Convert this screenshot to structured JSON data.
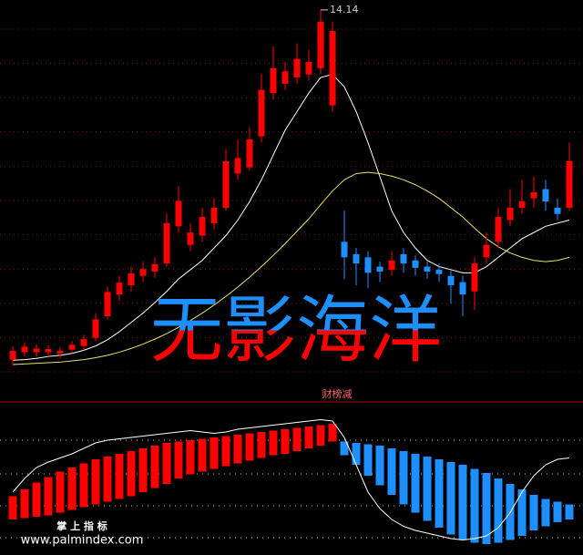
{
  "chart_data": [
    {
      "type": "candlestick",
      "open": [
        8.5,
        8.62,
        8.62,
        8.62,
        8.6,
        8.66,
        8.72,
        8.85,
        9.2,
        9.55,
        9.7,
        9.85,
        9.92,
        10.05,
        10.65,
        10.35,
        10.5,
        10.7,
        10.95,
        11.5,
        11.6,
        12.1,
        12.8,
        12.95,
        13.05,
        13.1,
        13.2,
        12.6,
        10.4,
        10.2,
        10.15,
        10.0,
        9.95,
        10.2,
        10.1,
        10.0,
        9.95,
        9.85,
        9.75,
        9.6,
        10.15,
        10.4,
        10.75,
        10.95,
        11.1,
        11.25,
        10.95,
        10.95
      ],
      "high": [
        8.72,
        8.78,
        8.74,
        8.73,
        8.7,
        8.8,
        8.9,
        9.25,
        9.68,
        9.85,
        10.0,
        10.08,
        10.15,
        10.85,
        11.3,
        10.7,
        10.95,
        11.1,
        11.9,
        12.05,
        12.25,
        13.1,
        13.55,
        13.3,
        13.6,
        13.5,
        14.14,
        13.95,
        10.9,
        10.3,
        10.25,
        10.08,
        10.25,
        10.3,
        10.18,
        10.08,
        10.05,
        9.95,
        9.85,
        10.15,
        10.55,
        10.95,
        11.25,
        11.4,
        11.45,
        11.4,
        11.1,
        12.0
      ],
      "low": [
        8.4,
        8.55,
        8.55,
        8.55,
        8.52,
        8.6,
        8.65,
        8.8,
        9.15,
        9.45,
        9.6,
        9.75,
        9.82,
        10.0,
        10.55,
        10.25,
        10.4,
        10.6,
        10.9,
        11.4,
        11.55,
        12.0,
        12.7,
        12.85,
        12.95,
        13.0,
        13.1,
        12.5,
        9.8,
        9.7,
        9.65,
        9.75,
        9.85,
        9.9,
        9.85,
        9.8,
        9.75,
        9.4,
        9.2,
        9.3,
        10.05,
        10.3,
        10.65,
        10.85,
        10.95,
        10.9,
        10.75,
        10.9
      ],
      "close": [
        8.64,
        8.71,
        8.68,
        8.67,
        8.64,
        8.74,
        8.83,
        9.15,
        9.59,
        9.74,
        9.89,
        9.96,
        10.04,
        10.7,
        11.06,
        10.55,
        10.8,
        10.95,
        11.7,
        11.75,
        12.05,
        12.85,
        13.2,
        13.15,
        13.35,
        13.3,
        13.95,
        13.8,
        10.15,
        10.05,
        9.9,
        9.92,
        10.1,
        10.05,
        9.98,
        9.92,
        9.88,
        9.7,
        9.55,
        10.05,
        10.35,
        10.8,
        10.95,
        11.05,
        11.2,
        11.05,
        10.85,
        11.7
      ],
      "up_color": "#ff0000",
      "down_color": "#1e8fff",
      "ylim": [
        8.2,
        14.3
      ],
      "high_label": 14.14,
      "lines": [
        {
          "color": "#ffffff",
          "values": [
            8.49,
            8.5,
            8.52,
            8.55,
            8.57,
            8.6,
            8.65,
            8.72,
            8.82,
            8.95,
            9.1,
            9.25,
            9.42,
            9.6,
            9.8,
            9.95,
            10.1,
            10.3,
            10.5,
            10.75,
            11.05,
            11.4,
            11.8,
            12.2,
            12.5,
            12.8,
            13.05,
            13.1,
            12.9,
            12.5,
            12.0,
            11.45,
            10.9,
            10.55,
            10.3,
            10.1,
            10.0,
            9.95,
            9.9,
            9.9,
            10.0,
            10.15,
            10.3,
            10.45,
            10.55,
            10.65,
            10.7,
            10.75
          ]
        },
        {
          "color": "#e8e06a",
          "values": [
            8.42,
            8.43,
            8.44,
            8.45,
            8.46,
            8.48,
            8.5,
            8.53,
            8.57,
            8.62,
            8.68,
            8.75,
            8.83,
            8.92,
            9.02,
            9.13,
            9.25,
            9.38,
            9.52,
            9.67,
            9.83,
            10.0,
            10.18,
            10.37,
            10.57,
            10.77,
            11.0,
            11.22,
            11.4,
            11.5,
            11.52,
            11.5,
            11.46,
            11.4,
            11.32,
            11.22,
            11.1,
            10.95,
            10.8,
            10.62,
            10.45,
            10.32,
            10.22,
            10.15,
            10.1,
            10.08,
            10.1,
            10.15
          ]
        }
      ]
    },
    {
      "type": "range-bar",
      "title": "财榜减",
      "high": [
        37,
        42,
        47,
        51,
        55,
        58,
        61,
        64,
        66,
        68,
        70,
        72,
        74,
        76,
        77,
        78,
        79,
        80,
        81,
        82,
        83,
        84,
        85,
        86,
        87,
        88,
        89,
        90,
        77,
        76,
        75,
        74,
        72,
        70,
        68,
        66,
        64,
        62,
        60,
        57,
        54,
        50,
        46,
        42,
        38,
        35,
        33,
        31
      ],
      "low": [
        20,
        21,
        22,
        23,
        25,
        27,
        29,
        31,
        33,
        35,
        37,
        40,
        43,
        46,
        50,
        53,
        55,
        57,
        59,
        61,
        63,
        65,
        67,
        68,
        70,
        72,
        74,
        77,
        67,
        60,
        52,
        45,
        38,
        31,
        25,
        19,
        14,
        9,
        5,
        3,
        2,
        3,
        5,
        8,
        12,
        15,
        18,
        20
      ],
      "up_color": "#ff0000",
      "down_color": "#1e8fff",
      "ylim": [
        0,
        100
      ],
      "line": {
        "color": "#ffffff",
        "values": [
          40,
          50,
          58,
          62,
          65,
          68,
          72,
          76,
          78,
          79,
          80,
          81,
          82,
          83,
          84,
          85,
          84,
          83,
          84,
          86,
          87,
          88,
          89,
          90,
          91,
          92,
          93,
          92,
          80,
          60,
          40,
          28,
          20,
          15,
          12,
          10,
          8,
          6,
          5,
          6,
          8,
          14,
          25,
          40,
          52,
          60,
          64,
          65
        ]
      }
    }
  ],
  "watermark": "无影海洋",
  "footer": {
    "title": "掌 上 指 标",
    "url": "www.palmindex.com"
  }
}
